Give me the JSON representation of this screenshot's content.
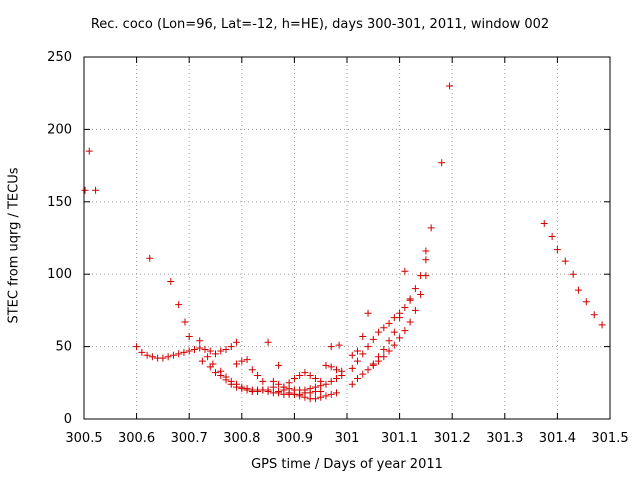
{
  "chart_data": {
    "type": "scatter",
    "title": "Rec. coco (Lon=96, Lat=-12, h=HE), days 300-301, 2011, window 002",
    "xlabel": "GPS time / Days of year 2011",
    "ylabel": "STEC from uqrg / TECUs",
    "xlim": [
      300.5,
      301.5
    ],
    "ylim": [
      0,
      250
    ],
    "xticks": [
      300.5,
      300.6,
      300.7,
      300.8,
      300.9,
      301,
      301.1,
      301.2,
      301.3,
      301.4,
      301.5
    ],
    "xtick_labels": [
      "300.5",
      "300.6",
      "300.7",
      "300.8",
      "300.9",
      "301",
      "301.1",
      "301.2",
      "301.3",
      "301.4",
      "301.5"
    ],
    "yticks": [
      0,
      50,
      100,
      150,
      200,
      250
    ],
    "ytick_labels": [
      "0",
      "50",
      "100",
      "150",
      "200",
      "250"
    ],
    "grid": true,
    "marker": "+",
    "color": "#d00000",
    "series": [
      {
        "name": "STEC",
        "points": [
          [
            300.502,
            158
          ],
          [
            300.51,
            185
          ],
          [
            300.522,
            158
          ],
          [
            300.6,
            50
          ],
          [
            300.61,
            46
          ],
          [
            300.62,
            44
          ],
          [
            300.63,
            43
          ],
          [
            300.64,
            42
          ],
          [
            300.65,
            42
          ],
          [
            300.66,
            43
          ],
          [
            300.67,
            44
          ],
          [
            300.68,
            45
          ],
          [
            300.69,
            46
          ],
          [
            300.7,
            47
          ],
          [
            300.71,
            48
          ],
          [
            300.72,
            49
          ],
          [
            300.73,
            48
          ],
          [
            300.74,
            47
          ],
          [
            300.75,
            45
          ],
          [
            300.76,
            47
          ],
          [
            300.77,
            48
          ],
          [
            300.78,
            50
          ],
          [
            300.79,
            53
          ],
          [
            300.625,
            111
          ],
          [
            300.665,
            95
          ],
          [
            300.68,
            79
          ],
          [
            300.692,
            67
          ],
          [
            300.7,
            57
          ],
          [
            300.72,
            54
          ],
          [
            300.735,
            43
          ],
          [
            300.745,
            38
          ],
          [
            300.76,
            33
          ],
          [
            300.77,
            29
          ],
          [
            300.78,
            26
          ],
          [
            300.79,
            24
          ],
          [
            300.8,
            22
          ],
          [
            300.81,
            21
          ],
          [
            300.82,
            20
          ],
          [
            300.83,
            20
          ],
          [
            300.84,
            20
          ],
          [
            300.85,
            20
          ],
          [
            300.725,
            40
          ],
          [
            300.74,
            36
          ],
          [
            300.75,
            32
          ],
          [
            300.76,
            30
          ],
          [
            300.77,
            27
          ],
          [
            300.78,
            24
          ],
          [
            300.79,
            22
          ],
          [
            300.8,
            21
          ],
          [
            300.81,
            20
          ],
          [
            300.82,
            19
          ],
          [
            300.83,
            19
          ],
          [
            300.79,
            38
          ],
          [
            300.8,
            40
          ],
          [
            300.81,
            41
          ],
          [
            300.82,
            34
          ],
          [
            300.83,
            30
          ],
          [
            300.84,
            26
          ],
          [
            300.85,
            53
          ],
          [
            300.86,
            22
          ],
          [
            300.87,
            37
          ],
          [
            300.88,
            20
          ],
          [
            300.89,
            18
          ],
          [
            300.9,
            17
          ],
          [
            300.91,
            16
          ],
          [
            300.92,
            15
          ],
          [
            300.93,
            14
          ],
          [
            300.94,
            14
          ],
          [
            300.95,
            15
          ],
          [
            300.96,
            16
          ],
          [
            300.97,
            17
          ],
          [
            300.98,
            18
          ],
          [
            300.84,
            20
          ],
          [
            300.85,
            19
          ],
          [
            300.86,
            18
          ],
          [
            300.87,
            18
          ],
          [
            300.88,
            17
          ],
          [
            300.89,
            17
          ],
          [
            300.9,
            17
          ],
          [
            300.91,
            17
          ],
          [
            300.92,
            18
          ],
          [
            300.93,
            18
          ],
          [
            300.94,
            19
          ],
          [
            300.95,
            19
          ],
          [
            300.86,
            26
          ],
          [
            300.87,
            24
          ],
          [
            300.88,
            22
          ],
          [
            300.89,
            21
          ],
          [
            300.9,
            20
          ],
          [
            300.91,
            20
          ],
          [
            300.92,
            20
          ],
          [
            300.93,
            21
          ],
          [
            300.94,
            22
          ],
          [
            300.95,
            23
          ],
          [
            300.96,
            24
          ],
          [
            300.97,
            26
          ],
          [
            300.98,
            28
          ],
          [
            300.87,
            19
          ],
          [
            300.88,
            22
          ],
          [
            300.89,
            25
          ],
          [
            300.9,
            28
          ],
          [
            300.91,
            30
          ],
          [
            300.92,
            32
          ],
          [
            300.93,
            30
          ],
          [
            300.94,
            28
          ],
          [
            300.95,
            26
          ],
          [
            300.96,
            37
          ],
          [
            300.97,
            36
          ],
          [
            300.98,
            34
          ],
          [
            300.99,
            30
          ],
          [
            300.97,
            50
          ],
          [
            300.985,
            51
          ],
          [
            300.99,
            33
          ],
          [
            301.01,
            24
          ],
          [
            301.02,
            28
          ],
          [
            301.03,
            31
          ],
          [
            301.04,
            34
          ],
          [
            301.05,
            37
          ],
          [
            301.06,
            40
          ],
          [
            301.07,
            43
          ],
          [
            301.08,
            47
          ],
          [
            301.09,
            51
          ],
          [
            301.1,
            56
          ],
          [
            301.11,
            61
          ],
          [
            301.12,
            67
          ],
          [
            301.13,
            75
          ],
          [
            301.14,
            86
          ],
          [
            301.15,
            99
          ],
          [
            301.01,
            35
          ],
          [
            301.02,
            40
          ],
          [
            301.03,
            45
          ],
          [
            301.04,
            50
          ],
          [
            301.05,
            55
          ],
          [
            301.06,
            60
          ],
          [
            301.07,
            63
          ],
          [
            301.08,
            66
          ],
          [
            301.09,
            70
          ],
          [
            301.1,
            73
          ],
          [
            301.11,
            77
          ],
          [
            301.12,
            82
          ],
          [
            301.13,
            90
          ],
          [
            301.14,
            99
          ],
          [
            301.15,
            110
          ],
          [
            301.01,
            44
          ],
          [
            301.02,
            47
          ],
          [
            301.03,
            57
          ],
          [
            301.04,
            73
          ],
          [
            301.05,
            38
          ],
          [
            301.06,
            43
          ],
          [
            301.07,
            48
          ],
          [
            301.08,
            54
          ],
          [
            301.09,
            60
          ],
          [
            301.1,
            70
          ],
          [
            301.11,
            102
          ],
          [
            301.12,
            83
          ],
          [
            301.15,
            116
          ],
          [
            301.16,
            132
          ],
          [
            301.18,
            177
          ],
          [
            301.195,
            230
          ],
          [
            301.375,
            135
          ],
          [
            301.39,
            126
          ],
          [
            301.4,
            117
          ],
          [
            301.415,
            109
          ],
          [
            301.43,
            100
          ],
          [
            301.44,
            89
          ],
          [
            301.455,
            81
          ],
          [
            301.47,
            72
          ],
          [
            301.485,
            65
          ]
        ]
      }
    ]
  }
}
